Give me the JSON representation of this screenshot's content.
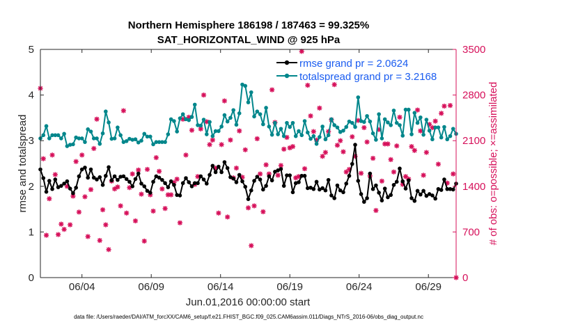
{
  "chart_data": {
    "type": "line",
    "title_line1": "Northern Hemisphere 186198 / 187463 = 99.325%",
    "title_line2": "SAT_HORIZONTAL_WIND @ 925 hPa",
    "xlabel": "Jun.01,2016 00:00:00 start",
    "ylabel_left": "rmse and totalspread",
    "ylabel_right": "# of obs: o=possible; ×=assimilated",
    "footer": "data file: /Users/raeder/DAI/ATM_forcXX/CAM6_setup/f.e21.FHIST_BGC.f09_025.CAM6assim.011/Diags_NTrS_2016-06/obs_diag_output.nc",
    "x_range_days": [
      1.0,
      31.0
    ],
    "ylim_left": [
      0,
      5
    ],
    "ylim_right": [
      0,
      3500
    ],
    "left_ticks": [
      "0",
      "1",
      "2",
      "3",
      "4",
      "5"
    ],
    "right_ticks": [
      "0",
      "700",
      "1400",
      "2100",
      "2800",
      "3500"
    ],
    "x_tick_labels": [
      "06/04",
      "06/09",
      "06/14",
      "06/19",
      "06/24",
      "06/29"
    ],
    "x_tick_days": [
      4,
      9,
      14,
      19,
      24,
      29
    ],
    "colors": {
      "rmse": "#000000",
      "spread": "#00868b",
      "obs": "#d6105a",
      "legend_text": "#1a5cf0"
    },
    "series": [
      {
        "name": "rmse grand pr = 2.0624",
        "axis": "left",
        "values": [
          2.37,
          2.18,
          1.88,
          2.12,
          1.94,
          2.15,
          1.98,
          2.01,
          2.06,
          2.11,
          1.95,
          1.85,
          1.97,
          2.22,
          2.37,
          2.41,
          2.19,
          2.37,
          2.19,
          2.15,
          2.2,
          2.03,
          2.23,
          2.42,
          2.13,
          2.22,
          2.14,
          2.21,
          2.22,
          2.16,
          2.1,
          2.0,
          2.16,
          2.28,
          2.06,
          2.0,
          1.9,
          1.86,
          2.1,
          2.22,
          2.19,
          2.14,
          2.07,
          1.98,
          2.11,
          2.03,
          1.81,
          1.8,
          2.07,
          2.18,
          2.09,
          2.0,
          2.07,
          2.07,
          2.22,
          2.15,
          2.06,
          2.25,
          2.45,
          2.31,
          2.43,
          2.31,
          2.53,
          2.4,
          2.2,
          2.17,
          2.09,
          2.25,
          2.11,
          1.99,
          1.72,
          1.91,
          2.12,
          2.21,
          2.15,
          1.93,
          2.01,
          2.22,
          2.13,
          2.32,
          2.35,
          2.38,
          2.01,
          2.24,
          2.24,
          1.87,
          2.07,
          2.09,
          2.23,
          2.23,
          1.96,
          1.97,
          1.94,
          2.1,
          1.93,
          1.96,
          1.91,
          2.14,
          1.8,
          1.74,
          2.02,
          1.91,
          1.87,
          2.06,
          2.23,
          2.49,
          2.91,
          2.12,
          1.83,
          1.66,
          1.74,
          2.28,
          1.94,
          2.02,
          1.86,
          1.69,
          1.95,
          1.76,
          1.81,
          2.03,
          2.1,
          2.39,
          2.11,
          1.95,
          2.13,
          1.74,
          1.68,
          1.9,
          1.82,
          1.9,
          1.79,
          1.83,
          1.8,
          1.73,
          1.94,
          1.92,
          2.15,
          1.94,
          1.94,
          1.93,
          2.06
        ]
      },
      {
        "name": "totalspread grand pr = 3.2168",
        "axis": "left",
        "values": [
          3.05,
          3.12,
          3.32,
          3.05,
          3.12,
          3.12,
          3.12,
          3.05,
          3.15,
          2.88,
          2.91,
          2.92,
          3.07,
          3.05,
          3.05,
          2.97,
          3.25,
          3.2,
          3.05,
          3.05,
          2.93,
          3.16,
          3.64,
          3.4,
          3.04,
          3.05,
          3.29,
          3.12,
          2.97,
          2.99,
          3.04,
          3.02,
          3.03,
          2.96,
          3.0,
          3.15,
          3.09,
          3.09,
          2.92,
          2.97,
          2.97,
          2.97,
          2.97,
          3.14,
          3.47,
          3.43,
          3.2,
          3.49,
          3.58,
          3.47,
          3.45,
          3.52,
          3.79,
          3.34,
          3.33,
          3.46,
          3.14,
          3.41,
          3.1,
          3.21,
          3.21,
          3.31,
          3.56,
          3.42,
          3.5,
          3.67,
          3.35,
          3.6,
          4.23,
          4.2,
          3.84,
          4.06,
          3.53,
          3.64,
          3.58,
          3.36,
          3.72,
          3.31,
          3.13,
          3.39,
          3.14,
          3.26,
          3.1,
          3.39,
          3.3,
          3.39,
          3.1,
          3.21,
          3.12,
          3.43,
          3.18,
          3.04,
          3.1,
          2.93,
          3.08,
          3.31,
          3.03,
          3.12,
          3.47,
          3.34,
          3.29,
          3.19,
          3.22,
          3.3,
          3.42,
          3.39,
          3.3,
          3.95,
          3.43,
          3.41,
          3.54,
          3.42,
          3.16,
          3.02,
          3.58,
          3.05,
          3.47,
          3.4,
          3.34,
          3.66,
          3.39,
          3.34,
          3.11,
          3.68,
          3.68,
          3.14,
          3.61,
          3.39,
          3.51,
          3.13,
          3.46,
          3.22,
          3.03,
          3.29,
          3.29,
          3.07,
          3.3,
          3.03,
          3.1,
          3.26,
          3.15
        ]
      },
      {
        "name": "obs possible",
        "axis": "right",
        "values": [
          2903,
          1823,
          650,
          1210,
          1880,
          1580,
          660,
          820,
          740,
          1400,
          810,
          1250,
          1780,
          1005,
          1880,
          1240,
          630,
          1350,
          1980,
          2430,
          570,
          1040,
          810,
          430,
          1480,
          1360,
          1390,
          1100,
          2560,
          990,
          1380,
          1590,
          870,
          1650,
          1280,
          560,
          1660,
          1270,
          1020,
          1840,
          1630,
          1360,
          1060,
          1270,
          1270,
          1460,
          1510,
          840,
          2430,
          1880,
          2460,
          2260,
          1430,
          1550,
          2280,
          2800,
          2390,
          2040,
          2110,
          1680,
          990,
          2040,
          2710,
          930,
          2110,
          1530,
          1680,
          2250,
          1540,
          1960,
          1070,
          490,
          1100,
          2130,
          1590,
          1010,
          1730,
          1590,
          2880,
          2380,
          1570,
          1720,
          1970,
          2150,
          1990,
          2010,
          1530,
          1550,
          3470,
          1670,
          2950,
          2480,
          2240,
          2110,
          2600,
          1860,
          1920,
          2240,
          2420,
          2960,
          2030,
          2100,
          1930,
          1620,
          1660,
          2160,
          1860,
          2410,
          1600,
          2300,
          2080,
          1560,
          1830,
          1030,
          2270,
          1480,
          2050,
          2050,
          1810,
          1620,
          2020,
          2460,
          1430,
          1550,
          1510,
          2010,
          1950,
          2570,
          2250,
          1570,
          1920,
          2350,
          2300,
          2400,
          1740,
          2520,
          2630,
          1450,
          2640,
          1590,
          0
        ]
      }
    ]
  }
}
